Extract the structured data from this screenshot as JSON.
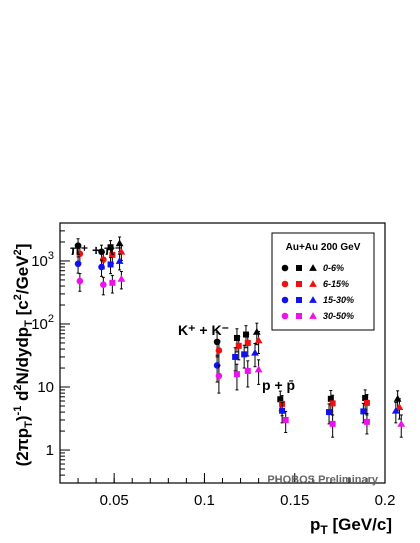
{
  "chart_data": {
    "type": "scatter",
    "title": "",
    "xlabel": "p",
    "xlabel_sub": "T",
    "xlabel_units": "[GeV/c]",
    "ylabel": "(2πp_T)^-1 d^2N/dydp_T [c^2/GeV^2]",
    "xlim": [
      0.02,
      0.2
    ],
    "ylim": [
      0.3,
      4000
    ],
    "y_scale": "log",
    "grid": false,
    "x_ticks": [
      "0.05",
      "0.1",
      "0.15",
      "0.2"
    ],
    "y_ticks": [
      "1",
      "10",
      "10^2",
      "10^3"
    ],
    "legend": {
      "title": "Au+Au 200 GeV",
      "placement": "top-right",
      "entries": [
        "0-6%",
        "6-15%",
        "15-30%",
        "30-50%"
      ]
    },
    "species_labels": [
      "π⁺ + π⁻",
      "K⁺ + K⁻",
      "p + p̄"
    ],
    "annotation": "PHOBOS Preliminary",
    "series": [
      {
        "centrality": "0-6%",
        "color": "#000000",
        "points": [
          {
            "x": 0.03,
            "y": 1750,
            "err": 500,
            "marker": "circle"
          },
          {
            "x": 0.043,
            "y": 1400,
            "err": 380,
            "marker": "circle"
          },
          {
            "x": 0.048,
            "y": 1650,
            "err": 450,
            "marker": "square"
          },
          {
            "x": 0.053,
            "y": 1900,
            "err": 500,
            "marker": "triangle"
          },
          {
            "x": 0.107,
            "y": 52,
            "err": 22,
            "marker": "circle"
          },
          {
            "x": 0.118,
            "y": 60,
            "err": 24,
            "marker": "square"
          },
          {
            "x": 0.123,
            "y": 68,
            "err": 26,
            "marker": "square"
          },
          {
            "x": 0.129,
            "y": 75,
            "err": 28,
            "marker": "triangle"
          },
          {
            "x": 0.142,
            "y": 6.4,
            "err": 2.2,
            "marker": "square"
          },
          {
            "x": 0.17,
            "y": 6.5,
            "err": 2.3,
            "marker": "square"
          },
          {
            "x": 0.189,
            "y": 6.7,
            "err": 2.3,
            "marker": "square"
          },
          {
            "x": 0.207,
            "y": 6.5,
            "err": 2.2,
            "marker": "triangle"
          }
        ]
      },
      {
        "centrality": "6-15%",
        "color": "#ee1111",
        "points": [
          {
            "x": 0.031,
            "y": 1300,
            "err": 360,
            "marker": "circle"
          },
          {
            "x": 0.044,
            "y": 1050,
            "err": 300,
            "marker": "circle"
          },
          {
            "x": 0.049,
            "y": 1250,
            "err": 340,
            "marker": "square"
          },
          {
            "x": 0.054,
            "y": 1400,
            "err": 380,
            "marker": "triangle"
          },
          {
            "x": 0.108,
            "y": 38,
            "err": 16,
            "marker": "circle"
          },
          {
            "x": 0.119,
            "y": 45,
            "err": 18,
            "marker": "square"
          },
          {
            "x": 0.124,
            "y": 50,
            "err": 19,
            "marker": "square"
          },
          {
            "x": 0.13,
            "y": 55,
            "err": 21,
            "marker": "triangle"
          },
          {
            "x": 0.143,
            "y": 5.4,
            "err": 1.9,
            "marker": "square"
          },
          {
            "x": 0.171,
            "y": 5.5,
            "err": 1.9,
            "marker": "square"
          },
          {
            "x": 0.19,
            "y": 5.6,
            "err": 2.0,
            "marker": "square"
          },
          {
            "x": 0.208,
            "y": 4.8,
            "err": 1.7,
            "marker": "triangle"
          }
        ]
      },
      {
        "centrality": "15-30%",
        "color": "#1111ee",
        "points": [
          {
            "x": 0.03,
            "y": 900,
            "err": 260,
            "marker": "circle"
          },
          {
            "x": 0.043,
            "y": 800,
            "err": 230,
            "marker": "circle"
          },
          {
            "x": 0.048,
            "y": 880,
            "err": 250,
            "marker": "square"
          },
          {
            "x": 0.053,
            "y": 1000,
            "err": 280,
            "marker": "triangle"
          },
          {
            "x": 0.107,
            "y": 22,
            "err": 10,
            "marker": "circle"
          },
          {
            "x": 0.117,
            "y": 30,
            "err": 12,
            "marker": "square"
          },
          {
            "x": 0.122,
            "y": 33,
            "err": 13,
            "marker": "square"
          },
          {
            "x": 0.128,
            "y": 35,
            "err": 14,
            "marker": "triangle"
          },
          {
            "x": 0.143,
            "y": 4.2,
            "err": 1.5,
            "marker": "square"
          },
          {
            "x": 0.169,
            "y": 4.0,
            "err": 1.4,
            "marker": "square"
          },
          {
            "x": 0.188,
            "y": 4.1,
            "err": 1.4,
            "marker": "square"
          },
          {
            "x": 0.206,
            "y": 4.2,
            "err": 1.5,
            "marker": "triangle"
          }
        ]
      },
      {
        "centrality": "30-50%",
        "color": "#ee11ee",
        "points": [
          {
            "x": 0.031,
            "y": 480,
            "err": 150,
            "marker": "circle"
          },
          {
            "x": 0.044,
            "y": 420,
            "err": 130,
            "marker": "circle"
          },
          {
            "x": 0.049,
            "y": 450,
            "err": 140,
            "marker": "square"
          },
          {
            "x": 0.054,
            "y": 520,
            "err": 160,
            "marker": "triangle"
          },
          {
            "x": 0.108,
            "y": 15,
            "err": 7,
            "marker": "circle"
          },
          {
            "x": 0.118,
            "y": 16,
            "err": 7,
            "marker": "square"
          },
          {
            "x": 0.124,
            "y": 18,
            "err": 8,
            "marker": "square"
          },
          {
            "x": 0.13,
            "y": 19,
            "err": 8,
            "marker": "triangle"
          },
          {
            "x": 0.145,
            "y": 3.0,
            "err": 1.1,
            "marker": "square"
          },
          {
            "x": 0.171,
            "y": 2.6,
            "err": 1.0,
            "marker": "square"
          },
          {
            "x": 0.19,
            "y": 2.8,
            "err": 1.0,
            "marker": "square"
          },
          {
            "x": 0.209,
            "y": 2.6,
            "err": 1.0,
            "marker": "triangle"
          }
        ]
      }
    ]
  }
}
